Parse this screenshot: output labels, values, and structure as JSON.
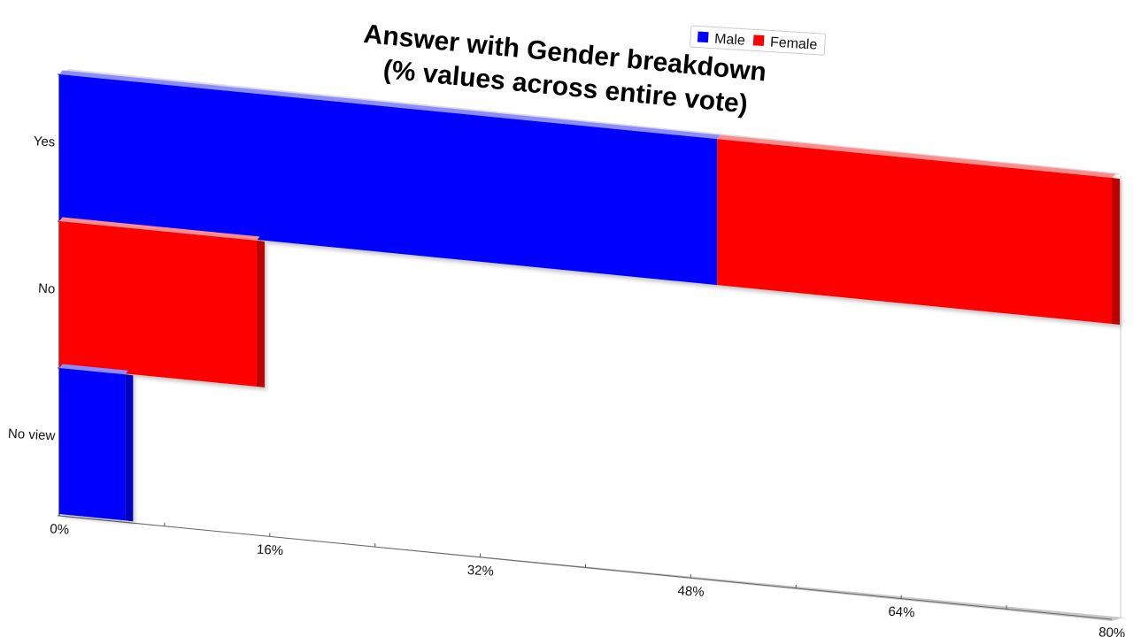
{
  "chart_data": {
    "type": "bar",
    "orientation": "horizontal",
    "stacked": true,
    "title": "Answer with Gender breakdown\n(% values across entire vote)",
    "categories": [
      "Yes",
      "No",
      "No view"
    ],
    "series": [
      {
        "name": "Male",
        "color": "#0000ff",
        "values": [
          50,
          0,
          5
        ]
      },
      {
        "name": "Female",
        "color": "#ff0000",
        "values": [
          30,
          15,
          0
        ]
      }
    ],
    "x_ticks": [
      "0%",
      "16%",
      "32%",
      "48%",
      "64%",
      "80%"
    ],
    "xlim": [
      0,
      80
    ],
    "x_unit": "%",
    "legend_position": "top-right",
    "grid": false,
    "three_d": true
  }
}
